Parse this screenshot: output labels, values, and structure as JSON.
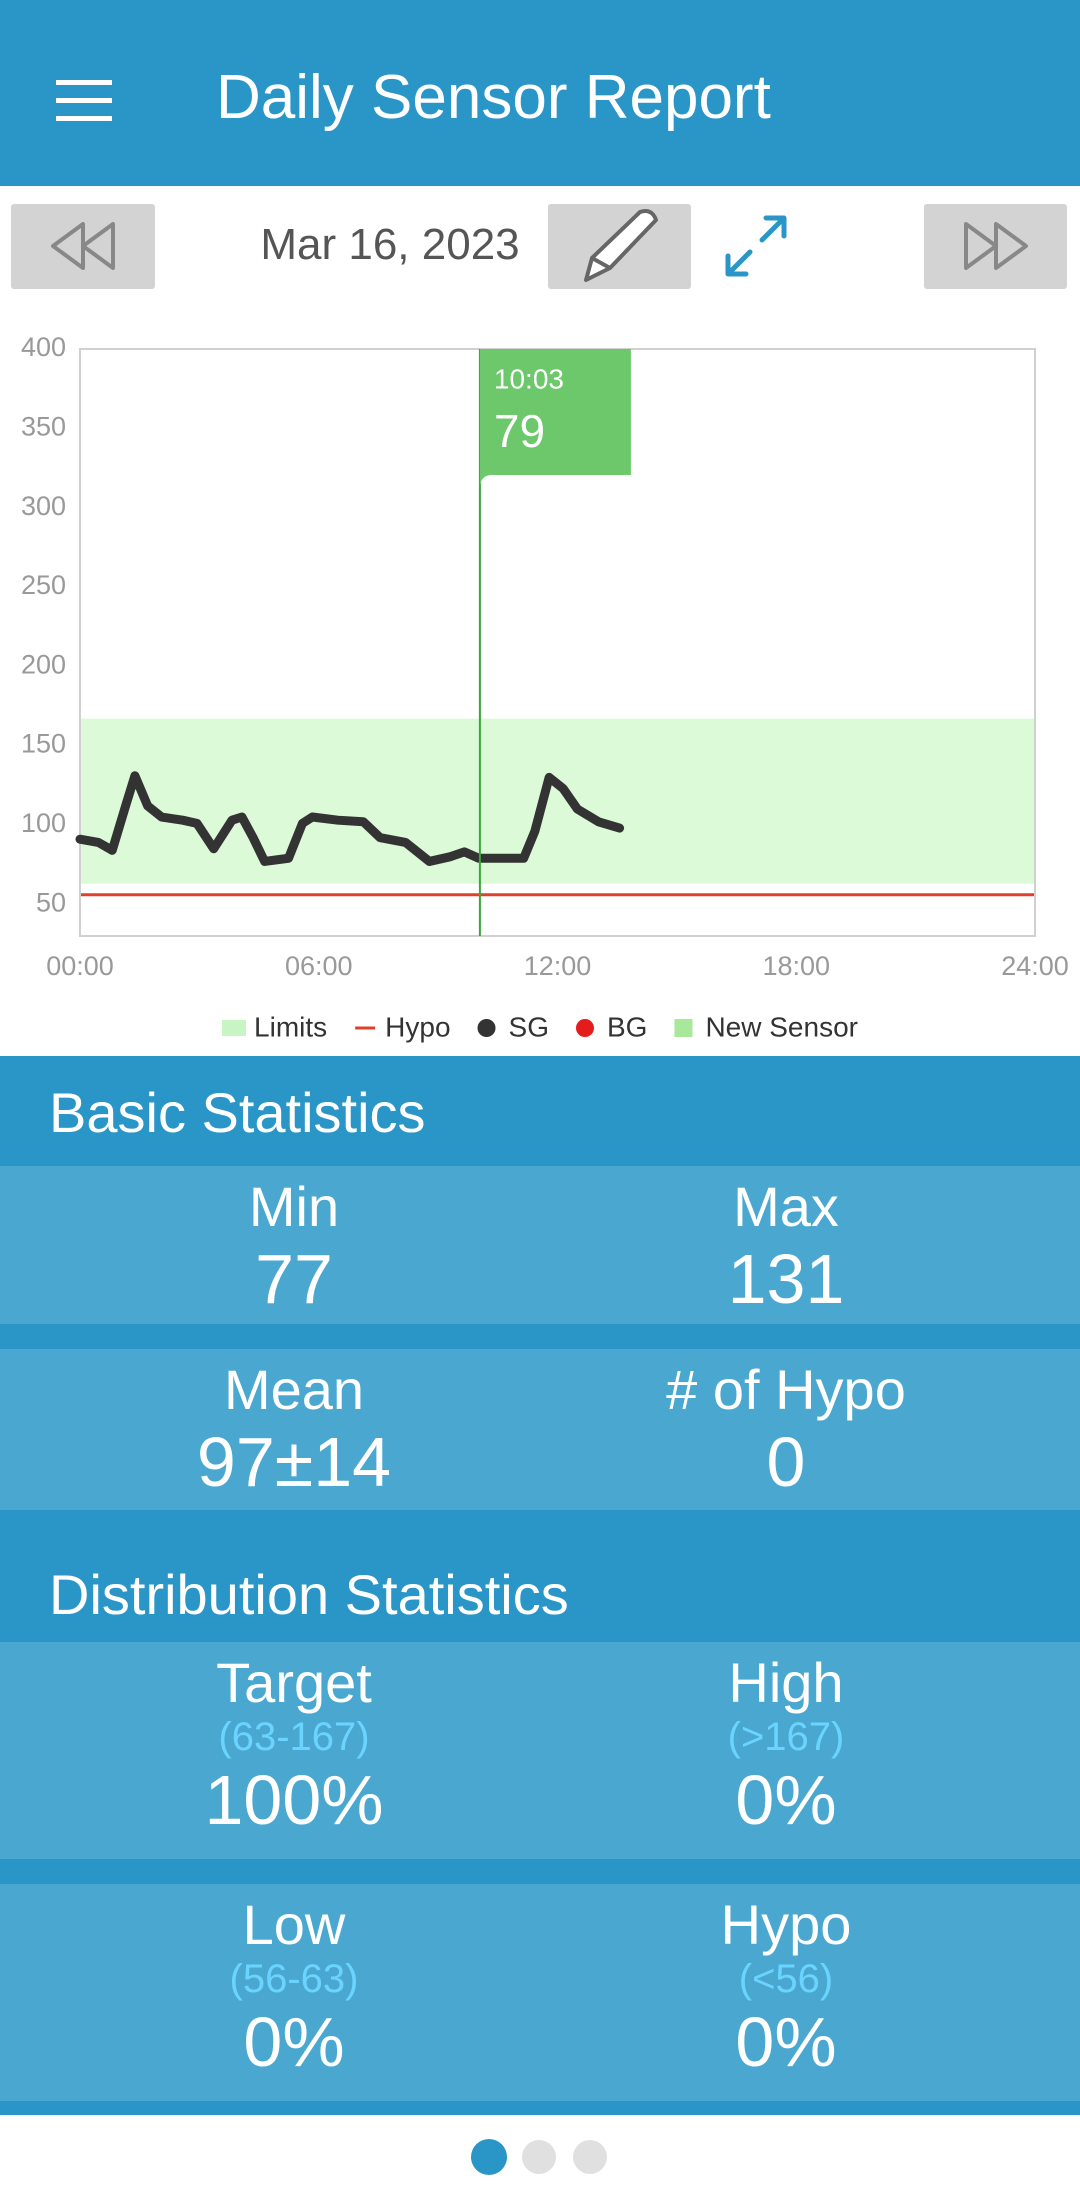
{
  "header": {
    "title": "Daily Sensor Report"
  },
  "date": "Mar 16, 2023",
  "chart_data": {
    "type": "line",
    "x": [
      0,
      0.46,
      0.81,
      1.17,
      1.38,
      1.7,
      2.05,
      2.58,
      2.94,
      3.36,
      3.82,
      4.07,
      4.35,
      4.64,
      5.24,
      5.59,
      5.84,
      6.48,
      7.12,
      7.54,
      8.18,
      8.78,
      9.31,
      9.66,
      10.02,
      11.15,
      11.43,
      11.79,
      12.14,
      12.5,
      13.03,
      13.56
    ],
    "series": [
      {
        "name": "SG",
        "color": "#333333",
        "values": [
          91,
          89,
          84,
          114,
          131,
          112,
          105,
          103,
          101,
          85,
          103,
          105,
          92,
          77,
          79,
          101,
          105,
          103,
          102,
          92,
          89,
          77,
          80,
          83,
          79,
          79,
          96,
          130,
          123,
          110,
          102,
          98
        ]
      }
    ],
    "xlim": [
      0,
      24
    ],
    "xticks": [
      {
        "value": 0,
        "label": "00:00"
      },
      {
        "value": 6,
        "label": "06:00"
      },
      {
        "value": 12,
        "label": "12:00"
      },
      {
        "value": 18,
        "label": "18:00"
      },
      {
        "value": 24,
        "label": "24:00"
      }
    ],
    "ylim": [
      30,
      400
    ],
    "yticks": [
      50,
      100,
      150,
      200,
      250,
      300,
      350,
      400
    ],
    "grid": false,
    "limits": [
      63,
      167
    ],
    "limits_color": "#dcf9d8",
    "hypo": 56,
    "hypo_color": "#e0402a",
    "cursor": {
      "x": 10.05,
      "label": "10:03",
      "value": 79,
      "color": "#6cc86a"
    },
    "legend": [
      {
        "name": "Limits",
        "color": "#c8f5c4",
        "marker": "band"
      },
      {
        "name": "Hypo",
        "color": "#e0402a",
        "marker": "line"
      },
      {
        "name": "SG",
        "color": "#333333",
        "marker": "dot"
      },
      {
        "name": "BG",
        "color": "#e51c1c",
        "marker": "dot"
      },
      {
        "name": "New Sensor",
        "color": "#a8e89a",
        "marker": "square"
      }
    ]
  },
  "basic_statistics": {
    "title": "Basic Statistics",
    "items": [
      {
        "label": "Min",
        "value": 77
      },
      {
        "label": "Max",
        "value": 131
      },
      {
        "label": "Mean",
        "value": "97±14"
      },
      {
        "label": "# of Hypo",
        "value": 0
      }
    ]
  },
  "distribution_statistics": {
    "title": "Distribution Statistics",
    "items": [
      {
        "label": "Target",
        "range": "(63-167)",
        "value": "100%"
      },
      {
        "label": "High",
        "range": "(>167)",
        "value": "0%"
      },
      {
        "label": "Low",
        "range": "(56-63)",
        "value": "0%"
      },
      {
        "label": "Hypo",
        "range": "(<56)",
        "value": "0%"
      }
    ]
  }
}
